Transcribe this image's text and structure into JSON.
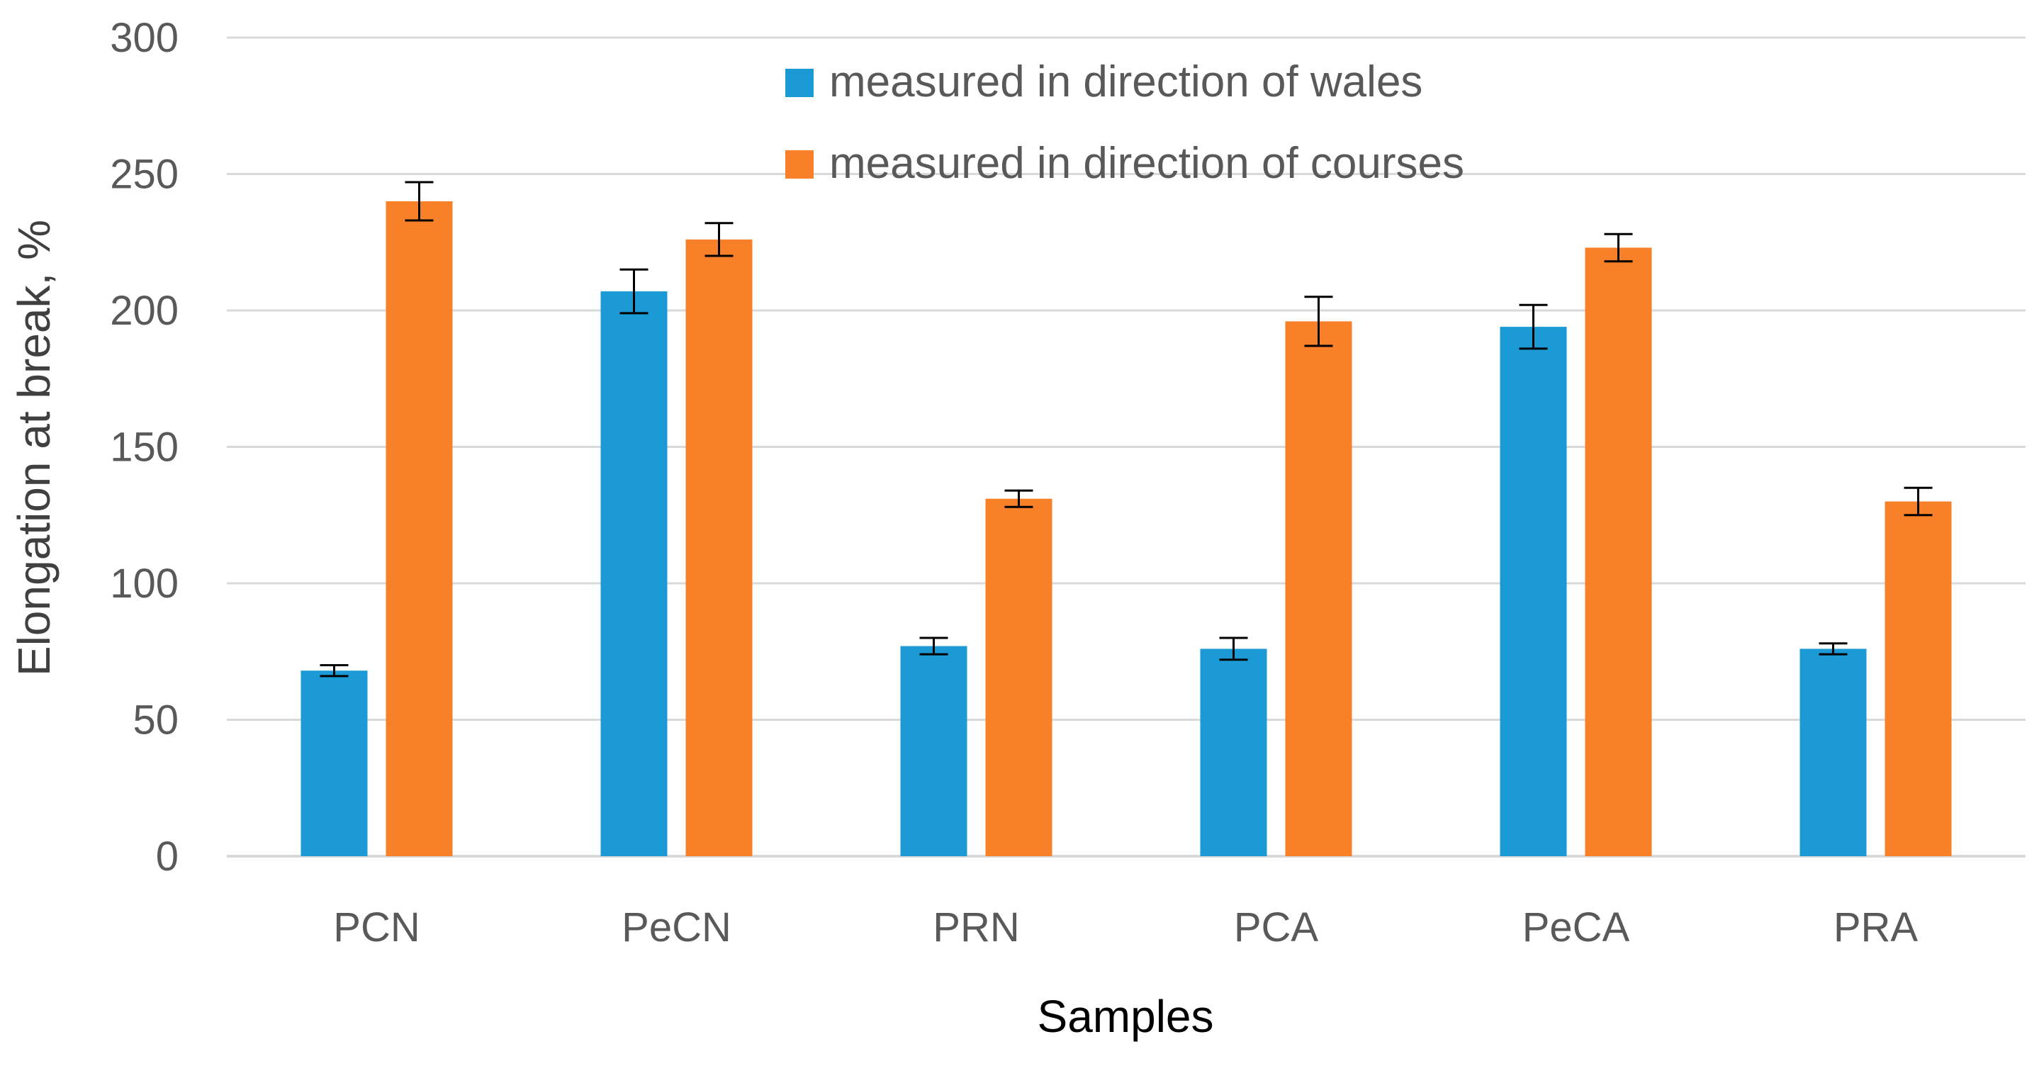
{
  "chart_data": {
    "type": "bar",
    "title": "",
    "xlabel": "Samples",
    "ylabel": "Elongation at break, %",
    "ylim": [
      0,
      300
    ],
    "yticks": [
      0,
      50,
      100,
      150,
      200,
      250,
      300
    ],
    "grid": true,
    "legend_position": "top-center",
    "categories": [
      "PCN",
      "PeCN",
      "PRN",
      "PCA",
      "PeCA",
      "PRA"
    ],
    "series": [
      {
        "name": "measured in direction of wales",
        "color": "#1b9ad6",
        "values": [
          68,
          207,
          77,
          76,
          194,
          76
        ],
        "errors": [
          2,
          8,
          3,
          4,
          8,
          2
        ]
      },
      {
        "name": "measured in direction of courses",
        "color": "#f78029",
        "values": [
          240,
          226,
          131,
          196,
          223,
          130
        ],
        "errors": [
          7,
          6,
          3,
          9,
          5,
          5
        ]
      }
    ],
    "colors": {
      "gridline": "#d9d9d9",
      "tick_text": "#595959",
      "error_bar": "#000000"
    }
  }
}
